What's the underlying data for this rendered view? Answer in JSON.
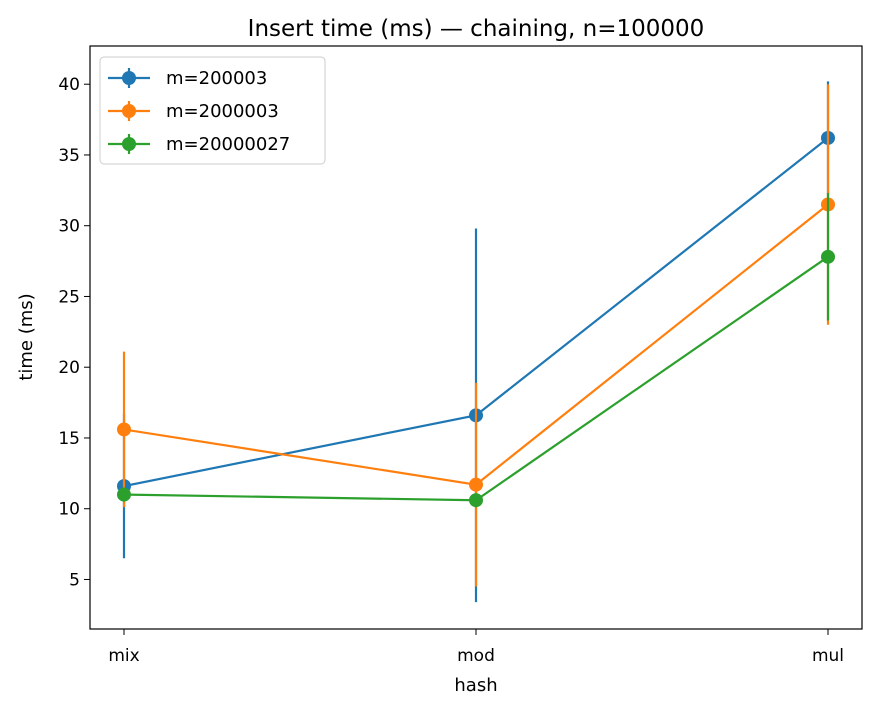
{
  "chart_data": {
    "type": "line",
    "title": "Insert time (ms) — chaining, n=100000",
    "xlabel": "hash",
    "ylabel": "time (ms)",
    "categories": [
      "mix",
      "mod",
      "mul"
    ],
    "ylim": [
      1.5,
      42.7
    ],
    "yticks": [
      5,
      10,
      15,
      20,
      25,
      30,
      35,
      40
    ],
    "grid": false,
    "legend": "top-left",
    "error_bars": true,
    "series": [
      {
        "name": "m=200003",
        "color": "#1f77b4",
        "values": [
          11.6,
          16.6,
          36.2
        ],
        "err": [
          5.1,
          13.2,
          4.0
        ]
      },
      {
        "name": "m=2000003",
        "color": "#ff7f0e",
        "values": [
          15.6,
          11.7,
          31.5
        ],
        "err": [
          5.5,
          7.2,
          8.5
        ]
      },
      {
        "name": "m=20000027",
        "color": "#2ca02c",
        "values": [
          11.0,
          10.6,
          27.8
        ],
        "err": [
          0.5,
          0.5,
          4.5
        ]
      }
    ]
  }
}
